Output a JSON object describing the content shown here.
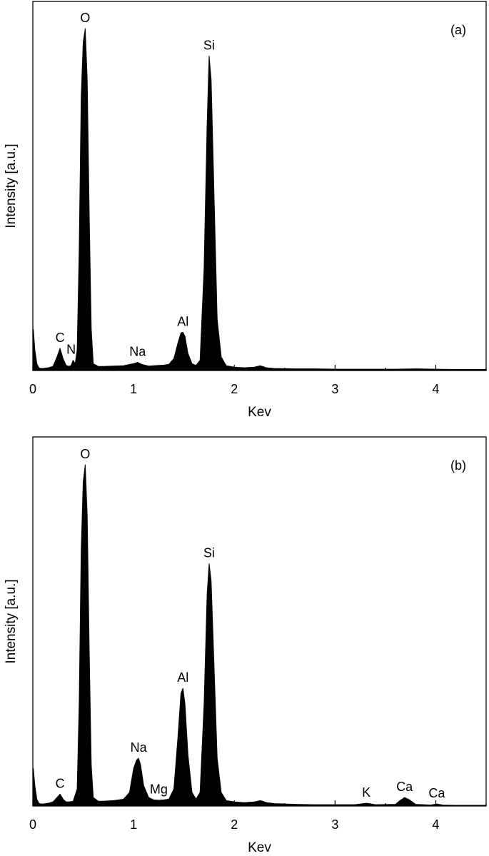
{
  "chart_data": [
    {
      "type": "area",
      "panel_label": "(a)",
      "xlabel": "Kev",
      "ylabel": "Intensity [a.u.]",
      "xlim": [
        0,
        4.5
      ],
      "ylim": [
        0,
        1.0
      ],
      "xticks": [
        0,
        1,
        2,
        3,
        4
      ],
      "x": [
        0.0,
        0.005,
        0.02,
        0.04,
        0.06,
        0.08,
        0.1,
        0.15,
        0.2,
        0.24,
        0.27,
        0.3,
        0.33,
        0.36,
        0.38,
        0.4,
        0.42,
        0.44,
        0.46,
        0.48,
        0.5,
        0.52,
        0.54,
        0.56,
        0.58,
        0.6,
        0.65,
        0.7,
        0.8,
        0.9,
        1.0,
        1.04,
        1.08,
        1.15,
        1.2,
        1.3,
        1.35,
        1.4,
        1.44,
        1.47,
        1.49,
        1.51,
        1.54,
        1.58,
        1.62,
        1.66,
        1.7,
        1.73,
        1.75,
        1.77,
        1.8,
        1.83,
        1.87,
        1.92,
        2.0,
        2.1,
        2.2,
        2.26,
        2.32,
        2.4,
        2.6,
        2.8,
        3.0,
        3.2,
        3.4,
        3.6,
        3.8,
        4.0,
        4.2,
        4.5
      ],
      "series": [
        {
          "values": [
            0.11,
            0.12,
            0.06,
            0.02,
            0.008,
            0.006,
            0.006,
            0.008,
            0.012,
            0.04,
            0.065,
            0.035,
            0.015,
            0.012,
            0.015,
            0.03,
            0.02,
            0.06,
            0.35,
            0.8,
            0.96,
            1.0,
            0.85,
            0.45,
            0.12,
            0.02,
            0.012,
            0.012,
            0.013,
            0.014,
            0.02,
            0.024,
            0.018,
            0.013,
            0.014,
            0.016,
            0.018,
            0.035,
            0.08,
            0.11,
            0.112,
            0.1,
            0.05,
            0.02,
            0.015,
            0.03,
            0.3,
            0.72,
            0.92,
            0.85,
            0.5,
            0.15,
            0.04,
            0.014,
            0.01,
            0.008,
            0.01,
            0.014,
            0.008,
            0.006,
            0.005,
            0.005,
            0.004,
            0.004,
            0.004,
            0.004,
            0.005,
            0.004,
            0.003,
            0.003
          ]
        }
      ],
      "annotations": [
        {
          "text": "O",
          "x": 0.52,
          "y": 1.0
        },
        {
          "text": "Si",
          "x": 1.75,
          "y": 0.92
        },
        {
          "text": "C",
          "x": 0.27,
          "y": 0.065
        },
        {
          "text": "N",
          "x": 0.38,
          "y": 0.03
        },
        {
          "text": "Na",
          "x": 1.04,
          "y": 0.024
        },
        {
          "text": "Al",
          "x": 1.49,
          "y": 0.112
        }
      ]
    },
    {
      "type": "area",
      "panel_label": "(b)",
      "xlabel": "Kev",
      "ylabel": "Intensity [a.u.]",
      "xlim": [
        0,
        4.5
      ],
      "ylim": [
        0,
        1.0
      ],
      "xticks": [
        0,
        1,
        2,
        3,
        4
      ],
      "x": [
        0.0,
        0.005,
        0.02,
        0.04,
        0.06,
        0.08,
        0.1,
        0.15,
        0.2,
        0.24,
        0.27,
        0.3,
        0.33,
        0.36,
        0.4,
        0.44,
        0.46,
        0.48,
        0.5,
        0.52,
        0.54,
        0.56,
        0.58,
        0.6,
        0.65,
        0.7,
        0.8,
        0.9,
        0.96,
        1.0,
        1.03,
        1.05,
        1.07,
        1.1,
        1.15,
        1.2,
        1.25,
        1.3,
        1.35,
        1.4,
        1.44,
        1.47,
        1.49,
        1.51,
        1.54,
        1.58,
        1.62,
        1.66,
        1.7,
        1.73,
        1.75,
        1.77,
        1.8,
        1.83,
        1.87,
        1.92,
        2.0,
        2.1,
        2.2,
        2.26,
        2.32,
        2.4,
        2.6,
        2.8,
        3.0,
        3.2,
        3.28,
        3.31,
        3.34,
        3.4,
        3.6,
        3.64,
        3.69,
        3.74,
        3.8,
        3.95,
        4.01,
        4.07,
        4.2,
        4.5
      ],
      "series": [
        {
          "values": [
            0.1,
            0.11,
            0.06,
            0.02,
            0.008,
            0.006,
            0.006,
            0.008,
            0.012,
            0.025,
            0.035,
            0.02,
            0.012,
            0.012,
            0.014,
            0.05,
            0.3,
            0.75,
            0.95,
            1.0,
            0.85,
            0.45,
            0.12,
            0.025,
            0.014,
            0.014,
            0.016,
            0.02,
            0.04,
            0.11,
            0.135,
            0.14,
            0.12,
            0.06,
            0.025,
            0.018,
            0.017,
            0.018,
            0.02,
            0.05,
            0.2,
            0.33,
            0.345,
            0.3,
            0.15,
            0.04,
            0.02,
            0.04,
            0.3,
            0.62,
            0.71,
            0.66,
            0.4,
            0.14,
            0.04,
            0.016,
            0.012,
            0.01,
            0.012,
            0.016,
            0.01,
            0.007,
            0.005,
            0.004,
            0.004,
            0.004,
            0.007,
            0.008,
            0.007,
            0.004,
            0.005,
            0.015,
            0.025,
            0.018,
            0.005,
            0.003,
            0.006,
            0.003,
            0.002,
            0.002
          ]
        }
      ],
      "annotations": [
        {
          "text": "O",
          "x": 0.52,
          "y": 1.0
        },
        {
          "text": "Si",
          "x": 1.75,
          "y": 0.71
        },
        {
          "text": "Al",
          "x": 1.49,
          "y": 0.345
        },
        {
          "text": "Na",
          "x": 1.05,
          "y": 0.14
        },
        {
          "text": "C",
          "x": 0.27,
          "y": 0.035
        },
        {
          "text": "Mg",
          "x": 1.25,
          "y": 0.018
        },
        {
          "text": "K",
          "x": 3.31,
          "y": 0.008
        },
        {
          "text": "Ca",
          "x": 3.69,
          "y": 0.025
        },
        {
          "text": "Ca",
          "x": 4.01,
          "y": 0.006
        }
      ]
    }
  ]
}
